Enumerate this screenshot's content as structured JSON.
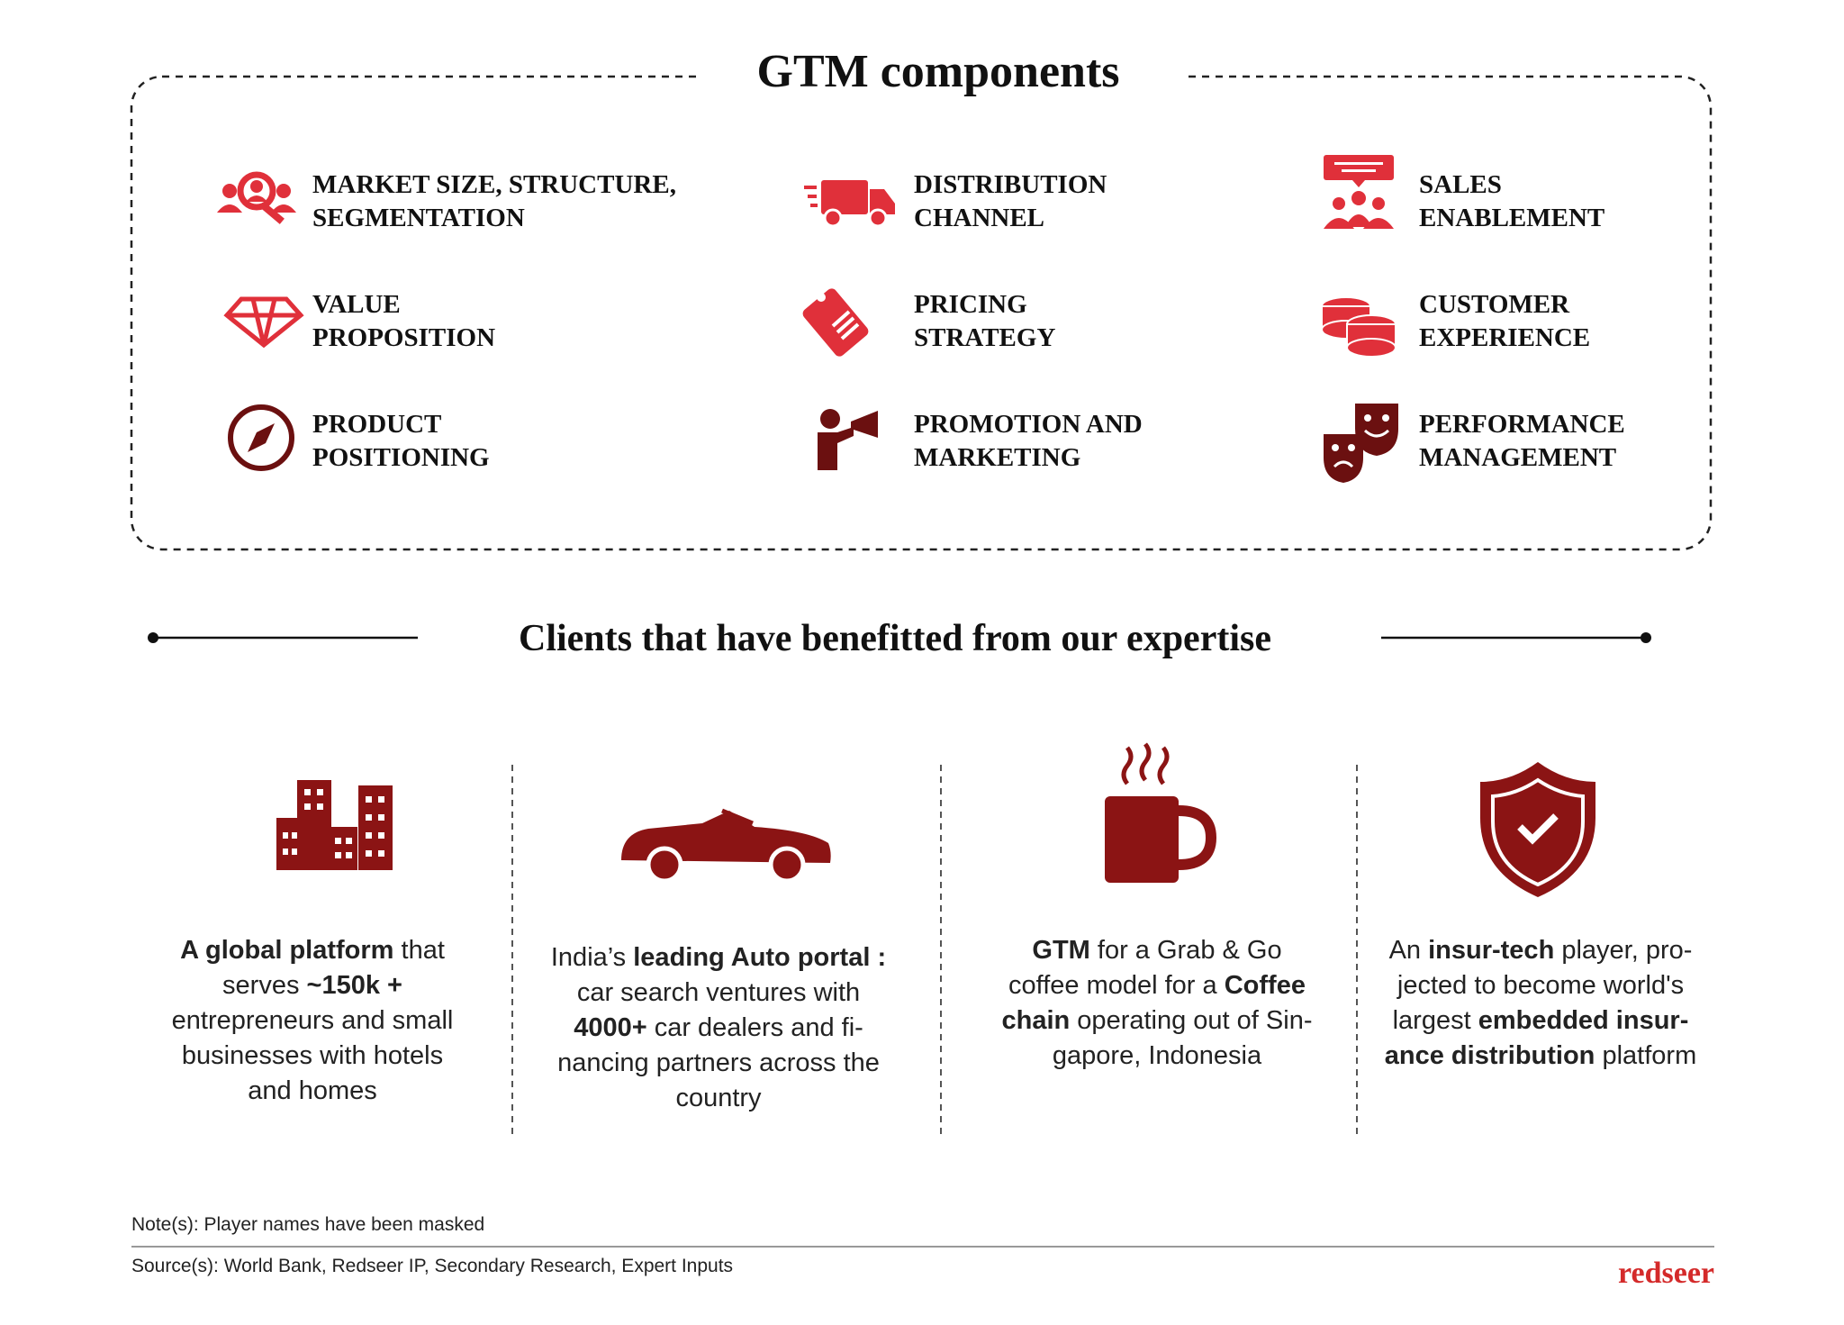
{
  "header": {
    "title": "GTM components"
  },
  "components": [
    {
      "lines": [
        "MARKET SIZE, STRUCTURE,",
        "SEGMENTATION"
      ]
    },
    {
      "lines": [
        "DISTRIBUTION",
        "CHANNEL"
      ]
    },
    {
      "lines": [
        "SALES",
        "ENABLEMENT"
      ]
    },
    {
      "lines": [
        "VALUE",
        "PROPOSITION"
      ]
    },
    {
      "lines": [
        "PRICING",
        "STRATEGY"
      ]
    },
    {
      "lines": [
        "CUSTOMER",
        "EXPERIENCE"
      ]
    },
    {
      "lines": [
        "PRODUCT",
        "POSITIONING"
      ]
    },
    {
      "lines": [
        "PROMOTION AND",
        "MARKETING"
      ]
    },
    {
      "lines": [
        "PERFORMANCE",
        "MANAGEMENT"
      ]
    }
  ],
  "clients_title": "Clients that have benefitted from our expertise",
  "clients": [
    {
      "lines": [
        [
          {
            "t": "A global platform",
            "b": true
          },
          {
            "t": " that"
          }
        ],
        [
          {
            "t": "serves "
          },
          {
            "t": "~150k +",
            "b": true
          }
        ],
        [
          {
            "t": "entrepreneurs and small"
          }
        ],
        [
          {
            "t": "businesses with hotels"
          }
        ],
        [
          {
            "t": "and homes"
          }
        ]
      ]
    },
    {
      "lines": [
        [
          {
            "t": "India’s "
          },
          {
            "t": "leading Auto portal :",
            "b": true
          }
        ],
        [
          {
            "t": "car search ventures with"
          }
        ],
        [
          {
            "t": "4000+",
            "b": true
          },
          {
            "t": " car dealers and fi-"
          }
        ],
        [
          {
            "t": "nancing partners across the"
          }
        ],
        [
          {
            "t": "country"
          }
        ]
      ]
    },
    {
      "lines": [
        [
          {
            "t": "GTM",
            "b": true
          },
          {
            "t": " for a Grab & Go"
          }
        ],
        [
          {
            "t": "coffee model for a "
          },
          {
            "t": "Coffee",
            "b": true
          }
        ],
        [
          {
            "t": "chain",
            "b": true
          },
          {
            "t": " operating out of Sin-"
          }
        ],
        [
          {
            "t": "gapore, Indonesia"
          }
        ]
      ]
    },
    {
      "lines": [
        [
          {
            "t": "An "
          },
          {
            "t": "insur-tech",
            "b": true
          },
          {
            "t": " player, pro-"
          }
        ],
        [
          {
            "t": "jected to become world's"
          }
        ],
        [
          {
            "t": "largest "
          },
          {
            "t": "embedded insur-",
            "b": true
          }
        ],
        [
          {
            "t": "ance distribution",
            "b": true
          },
          {
            "t": " platform"
          }
        ]
      ]
    }
  ],
  "footer": {
    "note": "Note(s): Player names have been masked",
    "source": "Source(s): World Bank, Redseer IP, Secondary Research, Expert Inputs",
    "logo": "redseer"
  }
}
